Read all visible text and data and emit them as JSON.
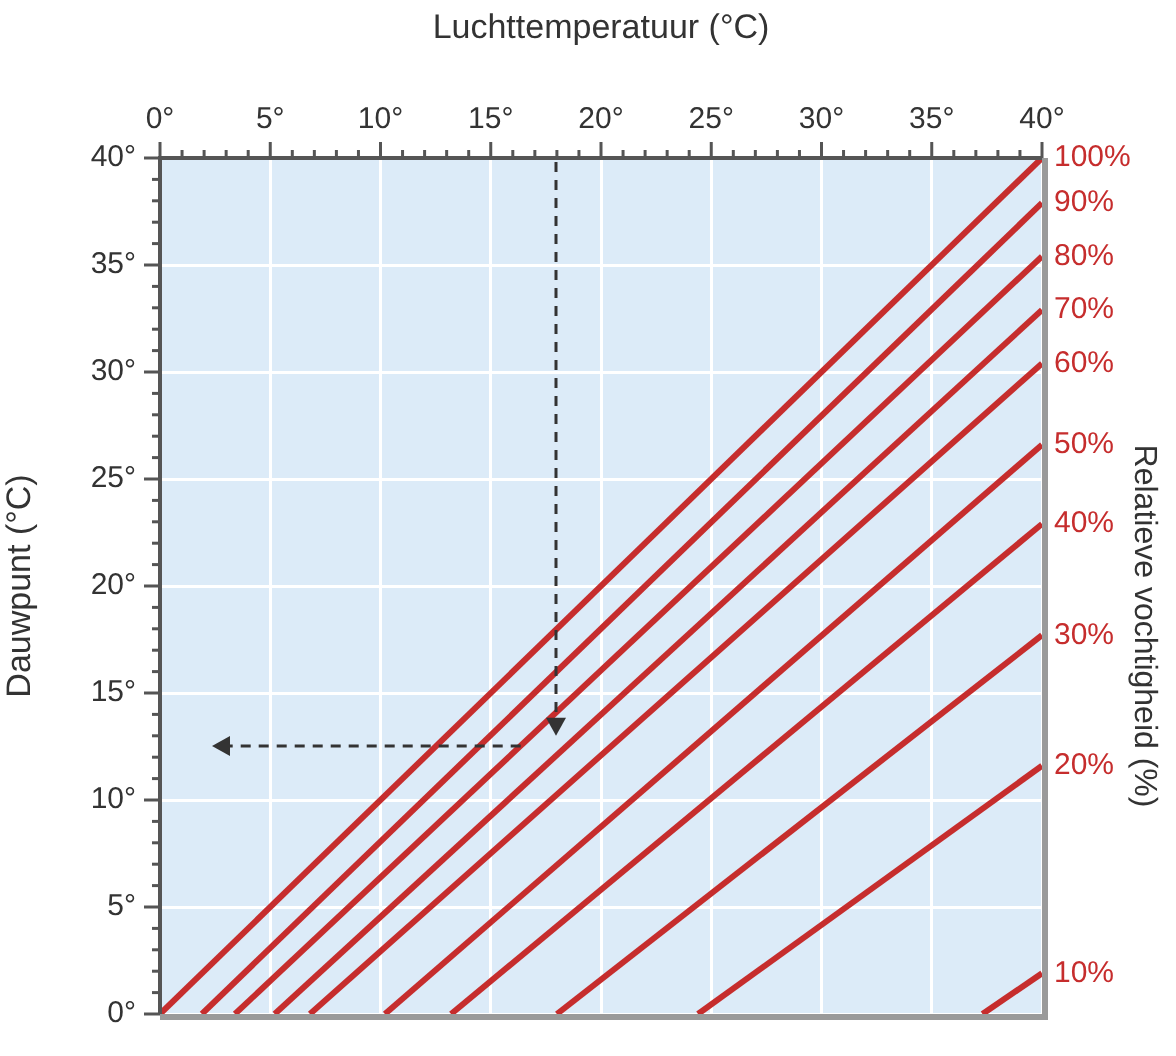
{
  "chart_data": {
    "type": "line",
    "xlabel": "Luchttemperatuur (°C)",
    "ylabel": "Dauwpunt (°C)",
    "y2label": "Relatieve vochtigheid (%)",
    "xlim": [
      0,
      40
    ],
    "ylim": [
      0,
      40
    ],
    "xticks": [
      {
        "value": 0,
        "label": "0°"
      },
      {
        "value": 1,
        "label": null
      },
      {
        "value": 2,
        "label": null
      },
      {
        "value": 3,
        "label": null
      },
      {
        "value": 4,
        "label": null
      },
      {
        "value": 5,
        "label": "5°"
      },
      {
        "value": 6,
        "label": null
      },
      {
        "value": 7,
        "label": null
      },
      {
        "value": 8,
        "label": null
      },
      {
        "value": 9,
        "label": null
      },
      {
        "value": 10,
        "label": "10°"
      },
      {
        "value": 11,
        "label": null
      },
      {
        "value": 12,
        "label": null
      },
      {
        "value": 13,
        "label": null
      },
      {
        "value": 14,
        "label": null
      },
      {
        "value": 15,
        "label": "15°"
      },
      {
        "value": 16,
        "label": null
      },
      {
        "value": 17,
        "label": null
      },
      {
        "value": 18,
        "label": null
      },
      {
        "value": 19,
        "label": null
      },
      {
        "value": 20,
        "label": "20°"
      },
      {
        "value": 21,
        "label": null
      },
      {
        "value": 22,
        "label": null
      },
      {
        "value": 23,
        "label": null
      },
      {
        "value": 24,
        "label": null
      },
      {
        "value": 25,
        "label": "25°"
      },
      {
        "value": 26,
        "label": null
      },
      {
        "value": 27,
        "label": null
      },
      {
        "value": 28,
        "label": null
      },
      {
        "value": 29,
        "label": null
      },
      {
        "value": 30,
        "label": "30°"
      },
      {
        "value": 31,
        "label": null
      },
      {
        "value": 32,
        "label": null
      },
      {
        "value": 33,
        "label": null
      },
      {
        "value": 34,
        "label": null
      },
      {
        "value": 35,
        "label": "35°"
      },
      {
        "value": 36,
        "label": null
      },
      {
        "value": 37,
        "label": null
      },
      {
        "value": 38,
        "label": null
      },
      {
        "value": 39,
        "label": null
      },
      {
        "value": 40,
        "label": "40°"
      }
    ],
    "yticks": [
      {
        "value": 0,
        "label": "0°"
      },
      {
        "value": 1,
        "label": null
      },
      {
        "value": 2,
        "label": null
      },
      {
        "value": 3,
        "label": null
      },
      {
        "value": 4,
        "label": null
      },
      {
        "value": 5,
        "label": "5°"
      },
      {
        "value": 6,
        "label": null
      },
      {
        "value": 7,
        "label": null
      },
      {
        "value": 8,
        "label": null
      },
      {
        "value": 9,
        "label": null
      },
      {
        "value": 10,
        "label": "10°"
      },
      {
        "value": 11,
        "label": null
      },
      {
        "value": 12,
        "label": null
      },
      {
        "value": 13,
        "label": null
      },
      {
        "value": 14,
        "label": null
      },
      {
        "value": 15,
        "label": "15°"
      },
      {
        "value": 16,
        "label": null
      },
      {
        "value": 17,
        "label": null
      },
      {
        "value": 18,
        "label": null
      },
      {
        "value": 19,
        "label": null
      },
      {
        "value": 20,
        "label": "20°"
      },
      {
        "value": 21,
        "label": null
      },
      {
        "value": 22,
        "label": null
      },
      {
        "value": 23,
        "label": null
      },
      {
        "value": 24,
        "label": null
      },
      {
        "value": 25,
        "label": "25°"
      },
      {
        "value": 26,
        "label": null
      },
      {
        "value": 27,
        "label": null
      },
      {
        "value": 28,
        "label": null
      },
      {
        "value": 29,
        "label": null
      },
      {
        "value": 30,
        "label": "30°"
      },
      {
        "value": 31,
        "label": null
      },
      {
        "value": 32,
        "label": null
      },
      {
        "value": 33,
        "label": null
      },
      {
        "value": 34,
        "label": null
      },
      {
        "value": 35,
        "label": "35°"
      },
      {
        "value": 36,
        "label": null
      },
      {
        "value": 37,
        "label": null
      },
      {
        "value": 38,
        "label": null
      },
      {
        "value": 39,
        "label": null
      },
      {
        "value": 40,
        "label": "40°"
      }
    ],
    "grid": true,
    "legend": false,
    "marker": "none",
    "line_style": "solid",
    "series": [
      {
        "name": "100%",
        "color": "#c62d2d",
        "x": [
          0,
          40
        ],
        "values": [
          0,
          40
        ]
      },
      {
        "name": "90%",
        "color": "#c62d2d",
        "x": [
          1.9,
          40
        ],
        "values": [
          0,
          37.9
        ]
      },
      {
        "name": "80%",
        "color": "#c62d2d",
        "x": [
          3.4,
          40
        ],
        "values": [
          0,
          35.4
        ]
      },
      {
        "name": "70%",
        "color": "#c62d2d",
        "x": [
          5.2,
          40
        ],
        "values": [
          0,
          32.9
        ]
      },
      {
        "name": "60%",
        "color": "#c62d2d",
        "x": [
          6.8,
          40
        ],
        "values": [
          0,
          30.4
        ]
      },
      {
        "name": "50%",
        "color": "#c62d2d",
        "x": [
          10.2,
          40
        ],
        "values": [
          0,
          26.6
        ]
      },
      {
        "name": "40%",
        "color": "#c62d2d",
        "x": [
          13.2,
          40
        ],
        "values": [
          0,
          22.9
        ]
      },
      {
        "name": "30%",
        "color": "#c62d2d",
        "x": [
          18,
          40
        ],
        "values": [
          0,
          17.7
        ]
      },
      {
        "name": "20%",
        "color": "#c62d2d",
        "x": [
          24.4,
          40
        ],
        "values": [
          0,
          11.6
        ]
      },
      {
        "name": "10%",
        "color": "#c62d2d",
        "x": [
          37.3,
          40
        ],
        "values": [
          0,
          1.9
        ]
      }
    ]
  }
}
